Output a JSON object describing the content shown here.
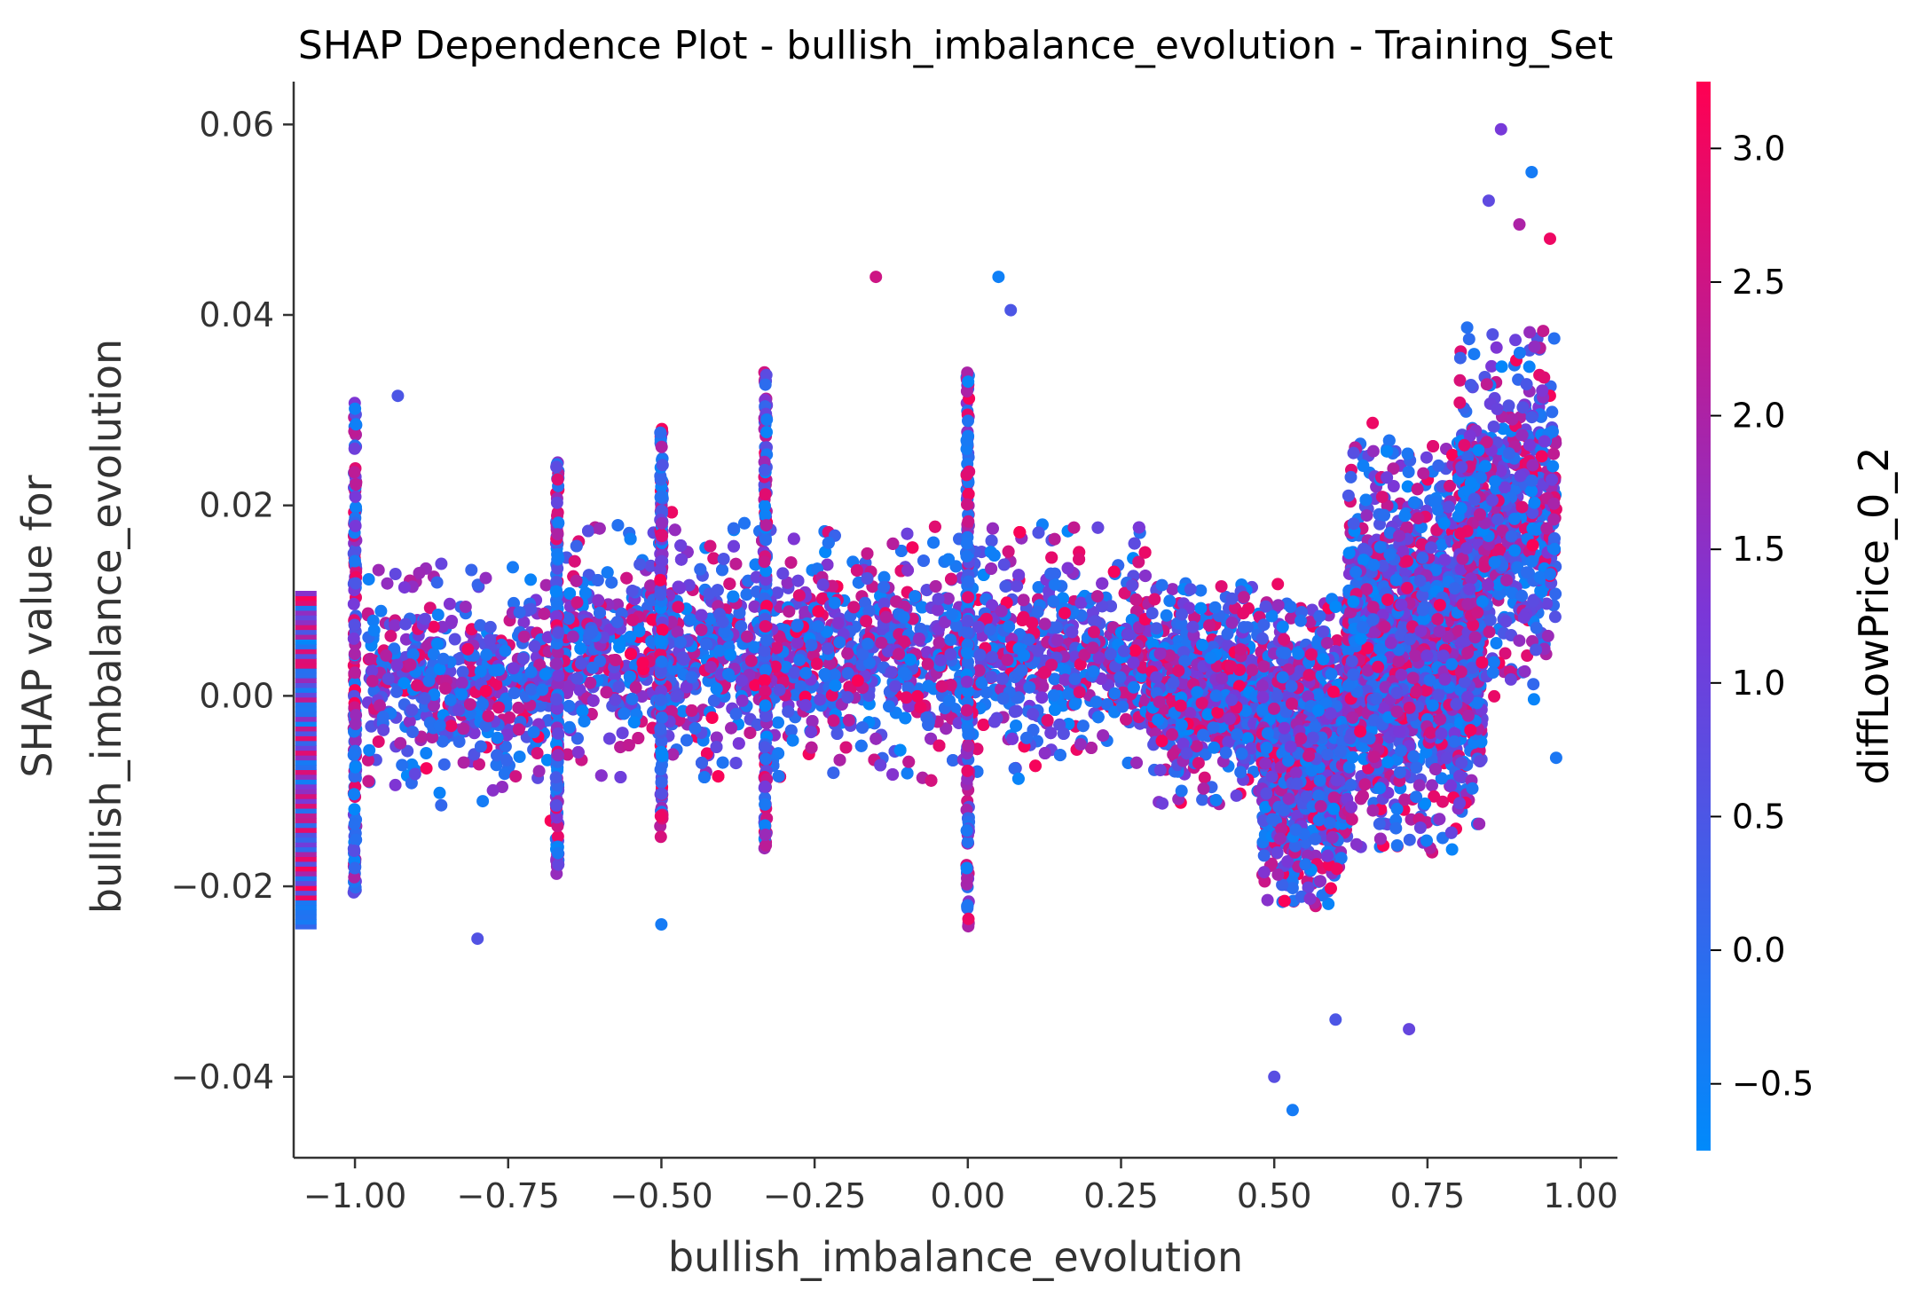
{
  "chart_data": {
    "type": "scatter",
    "title": "SHAP Dependence Plot - bullish_imbalance_evolution - Training_Set",
    "xlabel": "bullish_imbalance_evolution",
    "ylabel_lines": [
      "SHAP value for",
      "bullish_imbalance_evolution"
    ],
    "xlim": [
      -1.1,
      1.06
    ],
    "ylim": [
      -0.0485,
      0.0645
    ],
    "x_ticks": [
      -1.0,
      -0.75,
      -0.5,
      -0.25,
      0.0,
      0.25,
      0.5,
      0.75,
      1.0
    ],
    "x_tick_labels": [
      "−1.00",
      "−0.75",
      "−0.50",
      "−0.25",
      "0.00",
      "0.25",
      "0.50",
      "0.75",
      "1.00"
    ],
    "y_ticks": [
      -0.04,
      -0.02,
      0.0,
      0.02,
      0.04,
      0.06
    ],
    "y_tick_labels": [
      "−0.04",
      "−0.02",
      "0.00",
      "0.02",
      "0.04",
      "0.06"
    ],
    "grid": false,
    "colorbar": {
      "label": "diffLowPrice_0_2",
      "range": [
        -0.75,
        3.25
      ],
      "ticks": [
        -0.5,
        0.0,
        0.5,
        1.0,
        1.5,
        2.0,
        2.5,
        3.0
      ],
      "tick_labels": [
        "−0.5",
        "0.0",
        "0.5",
        "1.0",
        "1.5",
        "2.0",
        "2.5",
        "3.0"
      ],
      "colors": [
        "#008afb",
        "#7a37d8",
        "#ff0052"
      ]
    },
    "missing_values_strip": {
      "x": -1.08,
      "y_range": [
        -0.0245,
        0.011
      ]
    },
    "notable_points": [
      {
        "x": 0.87,
        "y": 0.0595,
        "c": 1.2
      },
      {
        "x": 0.92,
        "y": 0.055,
        "c": -0.4
      },
      {
        "x": 0.85,
        "y": 0.052,
        "c": 0.8
      },
      {
        "x": 0.9,
        "y": 0.0495,
        "c": 2.0
      },
      {
        "x": 0.95,
        "y": 0.048,
        "c": 3.0
      },
      {
        "x": -0.15,
        "y": 0.044,
        "c": 2.5
      },
      {
        "x": 0.05,
        "y": 0.044,
        "c": -0.5
      },
      {
        "x": 0.07,
        "y": 0.0405,
        "c": 0.5
      },
      {
        "x": 0.6,
        "y": -0.034,
        "c": 0.5
      },
      {
        "x": 0.53,
        "y": -0.0435,
        "c": -0.4
      },
      {
        "x": 0.5,
        "y": -0.04,
        "c": 0.7
      },
      {
        "x": -0.8,
        "y": -0.0255,
        "c": 0.6
      },
      {
        "x": -0.5,
        "y": -0.024,
        "c": -0.4
      },
      {
        "x": 0.96,
        "y": -0.0065,
        "c": -0.3
      },
      {
        "x": 0.72,
        "y": -0.035,
        "c": 0.9
      },
      {
        "x": -0.93,
        "y": 0.0315,
        "c": 0.5
      }
    ],
    "clusters": [
      {
        "x_range": [
          -0.98,
          -0.68
        ],
        "y_center": 0.001,
        "y_spread": 0.007,
        "n": 500
      },
      {
        "x_range": [
          -0.66,
          0.3
        ],
        "y_center": 0.0045,
        "y_spread": 0.0075,
        "n": 3800
      },
      {
        "x_range": [
          0.3,
          0.48
        ],
        "y_center": 0.0,
        "y_spread": 0.0065,
        "n": 700
      },
      {
        "x_range": [
          0.48,
          0.62
        ],
        "y_center": -0.006,
        "y_spread": 0.009,
        "n": 1300
      },
      {
        "x_range": [
          0.62,
          0.84
        ],
        "y_center": 0.005,
        "y_spread": 0.012,
        "n": 1900
      },
      {
        "x_range": [
          0.8,
          0.96
        ],
        "y_center": 0.019,
        "y_spread": 0.011,
        "n": 650
      }
    ],
    "vertical_columns": [
      {
        "x": -1.0,
        "y_range": [
          -0.021,
          0.031
        ]
      },
      {
        "x": -0.67,
        "y_range": [
          -0.019,
          0.025
        ]
      },
      {
        "x": -0.5,
        "y_range": [
          -0.015,
          0.029
        ]
      },
      {
        "x": -0.33,
        "y_range": [
          -0.016,
          0.034
        ]
      },
      {
        "x": 0.0,
        "y_range": [
          -0.025,
          0.034
        ]
      }
    ]
  }
}
